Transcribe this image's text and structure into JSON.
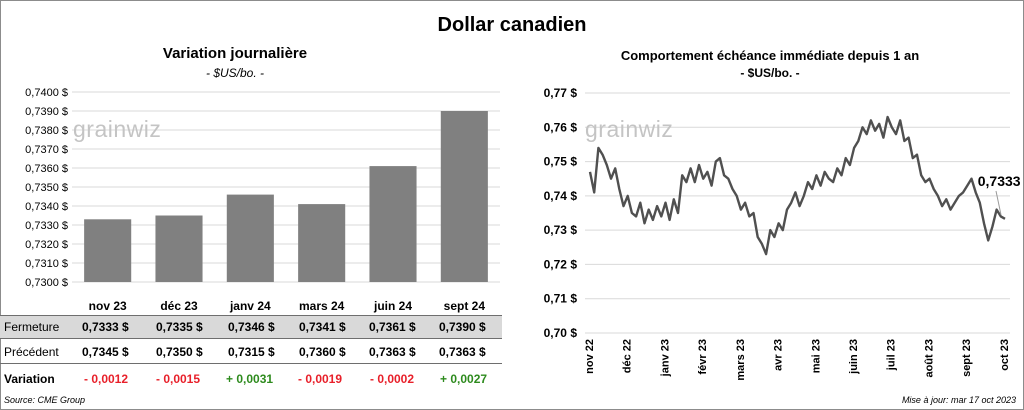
{
  "main_title": "Dollar canadien",
  "watermark": "grainwiz",
  "left_panel": {
    "title": "Variation  journalière",
    "subtitle": "- $US/bo. -",
    "table": {
      "rows": [
        {
          "label": "Fermeture",
          "values": [
            "0,7333 $",
            "0,7335 $",
            "0,7346 $",
            "0,7341 $",
            "0,7361 $",
            "0,7390 $"
          ]
        },
        {
          "label": "Précédent",
          "values": [
            "0,7345 $",
            "0,7350 $",
            "0,7315 $",
            "0,7360 $",
            "0,7363 $",
            "0,7363 $"
          ]
        },
        {
          "label": "Variation",
          "values": [
            "- 0,0012",
            "- 0,0015",
            "+ 0,0031",
            "- 0,0019",
            "- 0,0002",
            "+ 0,0027"
          ]
        }
      ]
    }
  },
  "right_panel": {
    "title": "Comportement échéance immédiate depuis 1 an",
    "subtitle": "- $US/bo. -",
    "last_value_label": "0,7333 $"
  },
  "footer": {
    "source": "Source: CME Group",
    "updated": "Mise à jour: mar 17 oct 2023"
  },
  "colors": {
    "bar": "#808080",
    "line": "#505050",
    "negative": "#e8202a",
    "positive": "#2e8b1e",
    "row_highlight": "#d9d9d9"
  },
  "chart_data": [
    {
      "type": "bar",
      "categories": [
        "nov 23",
        "déc 23",
        "janv 24",
        "mars 24",
        "juin 24",
        "sept 24"
      ],
      "values": [
        0.7333,
        0.7335,
        0.7346,
        0.7341,
        0.7361,
        0.739
      ],
      "ylim": [
        0.73,
        0.74
      ],
      "yticks": [
        "0,7300 $",
        "0,7310 $",
        "0,7320 $",
        "0,7330 $",
        "0,7340 $",
        "0,7350 $",
        "0,7360 $",
        "0,7370 $",
        "0,7380 $",
        "0,7390 $",
        "0,7400 $"
      ],
      "grid": true
    },
    {
      "type": "line",
      "ylim": [
        0.7,
        0.77
      ],
      "yticks": [
        "0,70 $",
        "0,71 $",
        "0,72 $",
        "0,73 $",
        "0,74 $",
        "0,75 $",
        "0,76 $",
        "0,77 $"
      ],
      "xticks": [
        "nov 22",
        "déc 22",
        "janv 23",
        "févr 23",
        "mars 23",
        "avr 23",
        "mai 23",
        "juin 23",
        "juil 23",
        "août 23",
        "sept 23",
        "oct 23"
      ],
      "grid": true,
      "series": [
        {
          "values": [
            0.747,
            0.741,
            0.754,
            0.752,
            0.749,
            0.745,
            0.748,
            0.742,
            0.737,
            0.74,
            0.735,
            0.734,
            0.738,
            0.732,
            0.736,
            0.733,
            0.737,
            0.734,
            0.738,
            0.733,
            0.739,
            0.735,
            0.746,
            0.744,
            0.748,
            0.744,
            0.749,
            0.745,
            0.747,
            0.743,
            0.75,
            0.751,
            0.746,
            0.745,
            0.742,
            0.74,
            0.736,
            0.738,
            0.734,
            0.735,
            0.728,
            0.726,
            0.723,
            0.73,
            0.728,
            0.732,
            0.73,
            0.736,
            0.738,
            0.741,
            0.737,
            0.74,
            0.744,
            0.742,
            0.746,
            0.743,
            0.747,
            0.745,
            0.744,
            0.748,
            0.746,
            0.751,
            0.749,
            0.754,
            0.756,
            0.76,
            0.758,
            0.762,
            0.759,
            0.761,
            0.757,
            0.763,
            0.76,
            0.758,
            0.762,
            0.756,
            0.757,
            0.751,
            0.752,
            0.746,
            0.744,
            0.745,
            0.742,
            0.74,
            0.737,
            0.739,
            0.736,
            0.738,
            0.74,
            0.741,
            0.743,
            0.745,
            0.741,
            0.738,
            0.732,
            0.727,
            0.731,
            0.736,
            0.734,
            0.7333
          ]
        }
      ]
    }
  ]
}
